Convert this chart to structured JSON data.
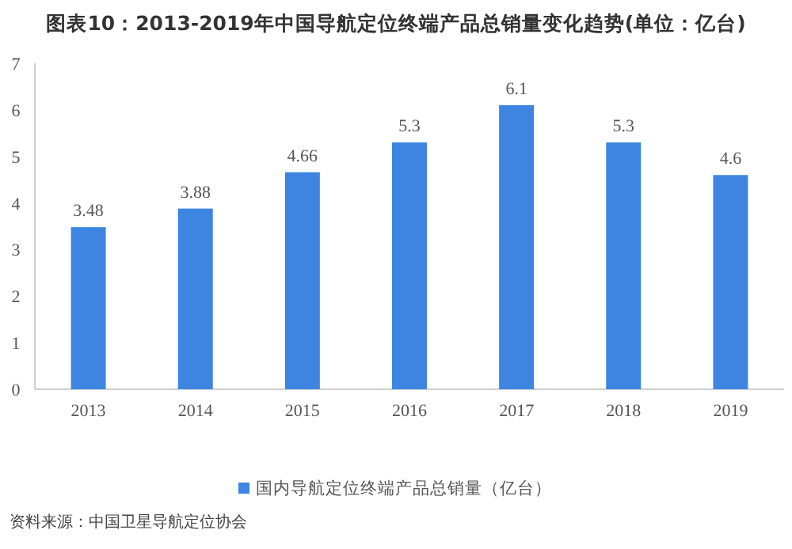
{
  "chart_data": {
    "type": "bar",
    "title": "图表10：2013-2019年中国导航定位终端产品总销量变化趋势(单位：亿台)",
    "categories": [
      "2013",
      "2014",
      "2015",
      "2016",
      "2017",
      "2018",
      "2019"
    ],
    "series": [
      {
        "name": "国内导航定位终端产品总销量（亿台）",
        "color": "#3d85e0",
        "values": [
          3.48,
          3.88,
          4.66,
          5.3,
          6.1,
          5.3,
          4.6
        ]
      }
    ],
    "ylim": [
      0,
      7
    ],
    "yticks": [
      0,
      1,
      2,
      3,
      4,
      5,
      6,
      7
    ],
    "data_labels": true,
    "legend": "bottom",
    "annotations": [
      "资料来源：中国卫星导航定位协会"
    ]
  }
}
